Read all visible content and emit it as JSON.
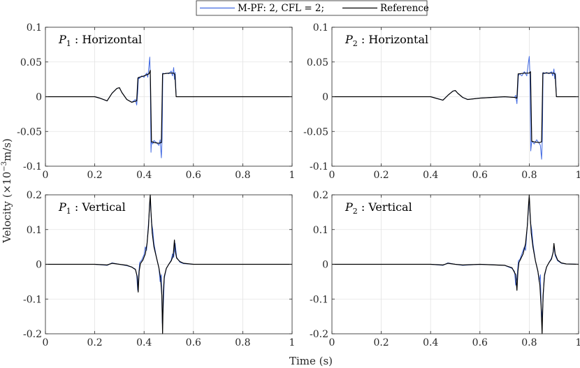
{
  "figure": {
    "xlabel": "Time (s)",
    "ylabel_prefix": "Velocity (",
    "ylabel_times": "×10",
    "ylabel_exp": "−3",
    "ylabel_suffix": "m/s)"
  },
  "legend": {
    "entries": [
      {
        "label": "M-PF: 2, CFL = 2;",
        "color": "#4169e1"
      },
      {
        "label": "Reference",
        "color": "#000000"
      }
    ]
  },
  "chart_data": [
    {
      "type": "line",
      "title_var": "P",
      "title_sub": "1",
      "title_rest": " : Horizontal",
      "xlabel": "",
      "ylabel": "",
      "xlim": [
        0,
        1
      ],
      "ylim": [
        -0.1,
        0.1
      ],
      "xticks": [
        0,
        0.2,
        0.4,
        0.6,
        0.8,
        1
      ],
      "xtick_labels": [
        "0",
        "0.2",
        "0.4",
        "0.6",
        "0.8",
        "1"
      ],
      "yticks": [
        -0.1,
        -0.05,
        0,
        0.05,
        0.1
      ],
      "ytick_labels": [
        "-0.1",
        "-0.05",
        "0",
        "0.05",
        "0.1"
      ],
      "series": [
        {
          "name": "Reference",
          "color": "#000000",
          "x": [
            0,
            0.2,
            0.22,
            0.25,
            0.27,
            0.29,
            0.3,
            0.31,
            0.33,
            0.35,
            0.37,
            0.375,
            0.38,
            0.4,
            0.42,
            0.425,
            0.43,
            0.435,
            0.44,
            0.46,
            0.47,
            0.475,
            0.48,
            0.5,
            0.52,
            0.525,
            0.53,
            0.6,
            1
          ],
          "y": [
            0,
            0,
            -0.002,
            -0.006,
            0.005,
            0.012,
            0.013,
            0.006,
            -0.004,
            -0.008,
            -0.006,
            0.027,
            0.028,
            0.03,
            0.033,
            0.038,
            -0.065,
            -0.065,
            -0.066,
            -0.067,
            -0.066,
            0.033,
            0.033,
            0.034,
            0.034,
            0.032,
            0,
            0,
            0
          ]
        },
        {
          "name": "M-PF: 2, CFL = 2;",
          "color": "#4169e1",
          "x": [
            0,
            0.2,
            0.22,
            0.25,
            0.27,
            0.29,
            0.3,
            0.31,
            0.33,
            0.35,
            0.365,
            0.37,
            0.374,
            0.377,
            0.38,
            0.39,
            0.4,
            0.41,
            0.415,
            0.42,
            0.423,
            0.425,
            0.428,
            0.43,
            0.435,
            0.44,
            0.45,
            0.46,
            0.465,
            0.47,
            0.473,
            0.476,
            0.48,
            0.49,
            0.5,
            0.51,
            0.515,
            0.52,
            0.523,
            0.526,
            0.53,
            0.6,
            1
          ],
          "y": [
            0,
            0,
            -0.002,
            -0.006,
            0.005,
            0.012,
            0.013,
            0.006,
            -0.004,
            -0.008,
            -0.004,
            -0.012,
            0.005,
            0.028,
            0.026,
            0.03,
            0.028,
            0.034,
            0.028,
            0.045,
            0.057,
            0.03,
            -0.08,
            -0.065,
            -0.068,
            -0.063,
            -0.066,
            -0.07,
            -0.062,
            -0.088,
            -0.06,
            0.034,
            0.033,
            0.034,
            0.033,
            0.037,
            0.03,
            0.042,
            0.025,
            0.035,
            0,
            0,
            0
          ]
        }
      ]
    },
    {
      "type": "line",
      "title_var": "P",
      "title_sub": "2",
      "title_rest": " : Horizontal",
      "xlabel": "",
      "ylabel": "",
      "xlim": [
        0,
        1
      ],
      "ylim": [
        -0.1,
        0.1
      ],
      "xticks": [
        0,
        0.2,
        0.4,
        0.6,
        0.8,
        1
      ],
      "xtick_labels": [
        "0",
        "0.2",
        "0.4",
        "0.6",
        "0.8",
        "1"
      ],
      "yticks": [
        -0.1,
        -0.05,
        0,
        0.05,
        0.1
      ],
      "ytick_labels": [
        "-0.1",
        "-0.05",
        "0",
        "0.05",
        "0.1"
      ],
      "series": [
        {
          "name": "Reference",
          "color": "#000000",
          "x": [
            0,
            0.4,
            0.42,
            0.45,
            0.47,
            0.49,
            0.5,
            0.51,
            0.53,
            0.55,
            0.6,
            0.7,
            0.74,
            0.75,
            0.755,
            0.76,
            0.78,
            0.8,
            0.805,
            0.81,
            0.82,
            0.84,
            0.85,
            0.855,
            0.86,
            0.88,
            0.9,
            0.905,
            0.91,
            1
          ],
          "y": [
            0,
            0,
            -0.002,
            -0.005,
            0.002,
            0.008,
            0.009,
            0.005,
            -0.001,
            -0.004,
            -0.002,
            0,
            -0.001,
            -0.002,
            0.033,
            0.033,
            0.034,
            0.034,
            0.036,
            -0.064,
            -0.065,
            -0.066,
            -0.065,
            0.034,
            0.034,
            0.034,
            0.034,
            0.032,
            0,
            0
          ]
        },
        {
          "name": "M-PF: 2, CFL = 2;",
          "color": "#4169e1",
          "x": [
            0,
            0.4,
            0.42,
            0.45,
            0.47,
            0.49,
            0.5,
            0.51,
            0.53,
            0.55,
            0.6,
            0.7,
            0.74,
            0.745,
            0.75,
            0.753,
            0.756,
            0.76,
            0.77,
            0.78,
            0.79,
            0.795,
            0.8,
            0.803,
            0.806,
            0.81,
            0.82,
            0.83,
            0.84,
            0.845,
            0.85,
            0.853,
            0.856,
            0.86,
            0.87,
            0.88,
            0.89,
            0.895,
            0.9,
            0.903,
            0.906,
            0.91,
            1
          ],
          "y": [
            0,
            0,
            -0.002,
            -0.005,
            0.002,
            0.008,
            0.009,
            0.005,
            -0.001,
            -0.004,
            -0.002,
            0,
            -0.001,
            0.002,
            -0.01,
            0.01,
            0.03,
            0.033,
            0.03,
            0.036,
            0.03,
            0.045,
            0.058,
            0.03,
            -0.078,
            -0.064,
            -0.068,
            -0.062,
            -0.067,
            -0.07,
            -0.09,
            -0.06,
            0.035,
            0.033,
            0.035,
            0.033,
            0.036,
            0.03,
            0.04,
            0.026,
            0.034,
            0,
            0
          ]
        }
      ]
    },
    {
      "type": "line",
      "title_var": "P",
      "title_sub": "1",
      "title_rest": " : Vertical",
      "xlabel": "",
      "ylabel": "",
      "xlim": [
        0,
        1
      ],
      "ylim": [
        -0.2,
        0.2
      ],
      "xticks": [
        0,
        0.2,
        0.4,
        0.6,
        0.8,
        1
      ],
      "xtick_labels": [
        "0",
        "0.2",
        "0.4",
        "0.6",
        "0.8",
        "1"
      ],
      "yticks": [
        -0.2,
        -0.1,
        0,
        0.1,
        0.2
      ],
      "ytick_labels": [
        "-0.2",
        "-0.1",
        "0",
        "0.1",
        "0.2"
      ],
      "series": [
        {
          "name": "Reference",
          "color": "#000000",
          "x": [
            0,
            0.2,
            0.25,
            0.27,
            0.3,
            0.33,
            0.35,
            0.365,
            0.372,
            0.376,
            0.38,
            0.385,
            0.395,
            0.405,
            0.412,
            0.418,
            0.422,
            0.425,
            0.428,
            0.433,
            0.44,
            0.45,
            0.46,
            0.467,
            0.472,
            0.475,
            0.478,
            0.482,
            0.49,
            0.5,
            0.51,
            0.518,
            0.523,
            0.526,
            0.532,
            0.545,
            0.56,
            0.6,
            1
          ],
          "y": [
            0,
            0,
            -0.002,
            0.003,
            0,
            -0.003,
            -0.008,
            -0.015,
            -0.035,
            -0.08,
            -0.02,
            0.002,
            0.012,
            0.03,
            0.06,
            0.11,
            0.17,
            0.2,
            0.15,
            0.09,
            0.05,
            0.02,
            -0.01,
            -0.04,
            -0.09,
            -0.2,
            -0.08,
            -0.035,
            -0.012,
            0,
            0.01,
            0.025,
            0.07,
            0.04,
            0.018,
            0.008,
            0.003,
            0,
            0
          ]
        },
        {
          "name": "M-PF: 2, CFL = 2;",
          "color": "#4169e1",
          "x": [
            0,
            0.2,
            0.25,
            0.27,
            0.3,
            0.33,
            0.35,
            0.365,
            0.37,
            0.374,
            0.378,
            0.382,
            0.39,
            0.4,
            0.405,
            0.41,
            0.415,
            0.42,
            0.425,
            0.43,
            0.435,
            0.44,
            0.45,
            0.46,
            0.465,
            0.47,
            0.474,
            0.478,
            0.482,
            0.49,
            0.5,
            0.51,
            0.515,
            0.52,
            0.526,
            0.532,
            0.545,
            0.56,
            0.6,
            1
          ],
          "y": [
            0,
            0,
            -0.003,
            0.004,
            0,
            -0.004,
            -0.008,
            -0.014,
            -0.03,
            -0.075,
            -0.03,
            0.005,
            0.012,
            0.028,
            0.05,
            0.04,
            0.09,
            0.14,
            0.19,
            0.12,
            0.1,
            0.06,
            0.02,
            -0.01,
            -0.05,
            -0.03,
            -0.17,
            -0.12,
            -0.04,
            -0.012,
            0,
            0.012,
            0.03,
            0.02,
            0.06,
            0.02,
            0.006,
            0.002,
            0,
            0
          ]
        }
      ]
    },
    {
      "type": "line",
      "title_var": "P",
      "title_sub": "2",
      "title_rest": " : Vertical",
      "xlabel": "",
      "ylabel": "",
      "xlim": [
        0,
        1
      ],
      "ylim": [
        -0.2,
        0.2
      ],
      "xticks": [
        0,
        0.2,
        0.4,
        0.6,
        0.8,
        1
      ],
      "xtick_labels": [
        "0",
        "0.2",
        "0.4",
        "0.6",
        "0.8",
        "1"
      ],
      "yticks": [
        -0.2,
        -0.1,
        0,
        0.1,
        0.2
      ],
      "ytick_labels": [
        "-0.2",
        "-0.1",
        "0",
        "0.1",
        "0.2"
      ],
      "series": [
        {
          "name": "Reference",
          "color": "#000000",
          "x": [
            0,
            0.4,
            0.45,
            0.47,
            0.5,
            0.53,
            0.6,
            0.7,
            0.73,
            0.745,
            0.75,
            0.754,
            0.758,
            0.765,
            0.775,
            0.785,
            0.792,
            0.797,
            0.8,
            0.803,
            0.808,
            0.815,
            0.825,
            0.835,
            0.843,
            0.848,
            0.852,
            0.856,
            0.862,
            0.87,
            0.88,
            0.89,
            0.897,
            0.9,
            0.905,
            0.915,
            0.93,
            0.95,
            1
          ],
          "y": [
            0,
            0,
            -0.002,
            0.003,
            0,
            -0.002,
            0,
            -0.003,
            -0.01,
            -0.03,
            -0.075,
            -0.02,
            0.005,
            0.015,
            0.03,
            0.06,
            0.11,
            0.17,
            0.2,
            0.15,
            0.09,
            0.05,
            0.01,
            -0.02,
            -0.06,
            -0.12,
            -0.2,
            -0.09,
            -0.03,
            -0.008,
            0.005,
            0.015,
            0.035,
            0.06,
            0.03,
            0.012,
            0.004,
            0.001,
            0
          ]
        },
        {
          "name": "M-PF: 2, CFL = 2;",
          "color": "#4169e1",
          "x": [
            0,
            0.4,
            0.45,
            0.47,
            0.5,
            0.53,
            0.6,
            0.7,
            0.73,
            0.74,
            0.745,
            0.75,
            0.756,
            0.762,
            0.77,
            0.78,
            0.785,
            0.79,
            0.795,
            0.8,
            0.805,
            0.81,
            0.815,
            0.825,
            0.835,
            0.84,
            0.845,
            0.85,
            0.855,
            0.86,
            0.87,
            0.88,
            0.89,
            0.895,
            0.9,
            0.905,
            0.915,
            0.93,
            0.95,
            1
          ],
          "y": [
            0,
            0,
            -0.003,
            0.004,
            0,
            -0.003,
            0,
            -0.003,
            -0.012,
            -0.02,
            -0.06,
            -0.04,
            0.01,
            0.014,
            0.03,
            0.05,
            0.04,
            0.09,
            0.14,
            0.19,
            0.12,
            0.1,
            0.06,
            0.01,
            -0.02,
            -0.05,
            -0.03,
            -0.16,
            -0.12,
            -0.04,
            -0.008,
            0.005,
            0.018,
            0.03,
            0.05,
            0.025,
            0.01,
            0.003,
            0.001,
            0
          ]
        }
      ]
    }
  ]
}
